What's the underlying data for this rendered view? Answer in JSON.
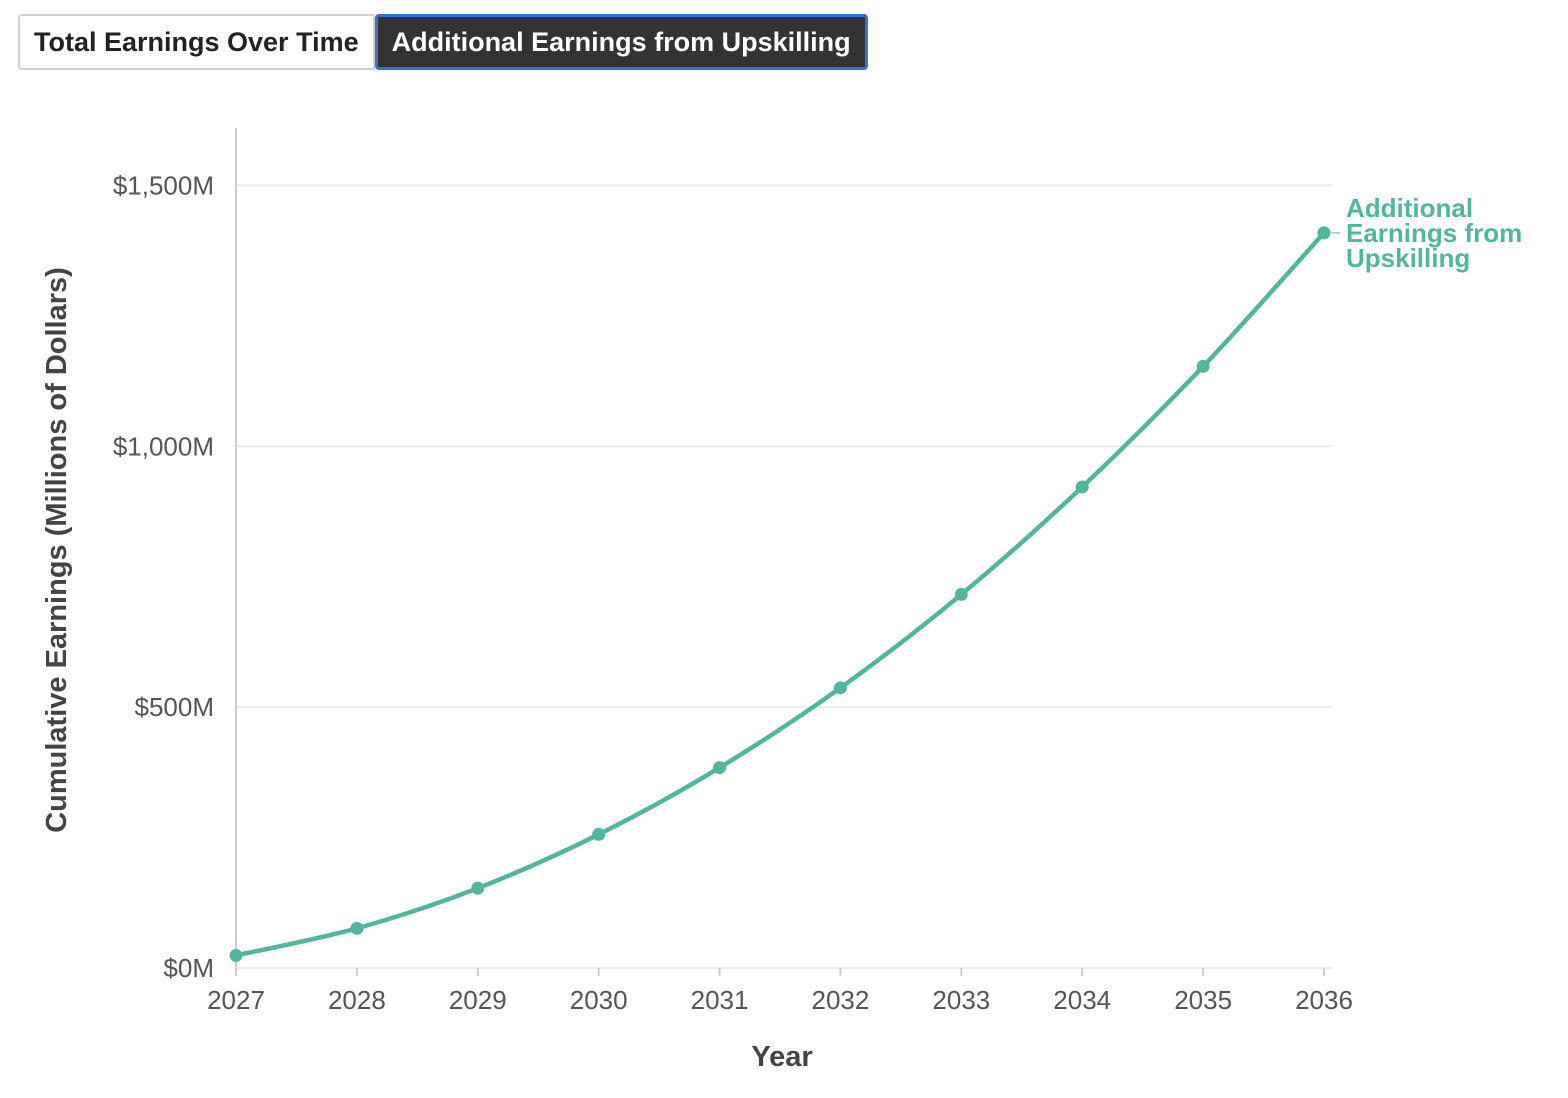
{
  "tabs": [
    {
      "label": "Total Earnings Over Time",
      "active": false
    },
    {
      "label": "Additional Earnings from Upskilling",
      "active": true
    }
  ],
  "colors": {
    "series": "#52b59e",
    "grid": "#ebebeb",
    "axis": "#cccccc",
    "active_tab_bg": "#333333",
    "active_tab_border": "#3a6fd8"
  },
  "chart_data": {
    "type": "line",
    "title": "",
    "xlabel": "Year",
    "ylabel": "Cumulative Earnings (Millions of Dollars)",
    "x": [
      2027,
      2028,
      2029,
      2030,
      2031,
      2032,
      2033,
      2034,
      2035,
      2036
    ],
    "x_tick_labels": [
      "2027",
      "2028",
      "2029",
      "2030",
      "2031",
      "2032",
      "2033",
      "2034",
      "2035",
      "2036"
    ],
    "y_ticks": [
      0,
      500,
      1000,
      1500
    ],
    "y_tick_labels": [
      "$0M",
      "$500M",
      "$1,000M",
      "$1,500M"
    ],
    "ylim": [
      0,
      1610
    ],
    "grid": true,
    "series": [
      {
        "name": "Additional Earnings from Upskilling",
        "label_lines": [
          "Additional",
          "Earnings from",
          "Upskilling"
        ],
        "values": [
          24,
          76,
          153,
          256,
          384,
          537,
          716,
          922,
          1153,
          1409
        ]
      }
    ]
  }
}
